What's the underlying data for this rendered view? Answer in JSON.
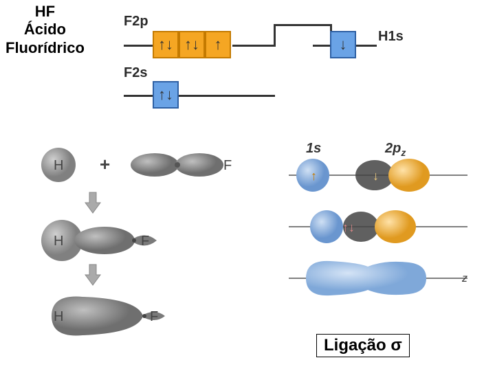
{
  "title": {
    "line1": "HF",
    "line2": "Ácido",
    "line3": "Fluorídrico"
  },
  "energyDiagram": {
    "f2p": {
      "label": "F2p",
      "fill": "#f5a623",
      "border": "#c47a00",
      "arrows": [
        "↑↓",
        "↑↓",
        "↑"
      ]
    },
    "h1s": {
      "label": "H1s",
      "fill": "#6aa3e6",
      "border": "#2d5fa3",
      "arrows": [
        "↓"
      ]
    },
    "f2s": {
      "label": "F2s",
      "fill": "#6aa3e6",
      "border": "#2d5fa3",
      "arrows": [
        "↑↓"
      ]
    }
  },
  "hfSeq": {
    "H": "H",
    "F": "F",
    "plus": "+",
    "colors": {
      "grayDark": "#7a7a7a",
      "grayMid": "#8f8f8f",
      "grayLight": "#b8b8b8"
    }
  },
  "bondSeq": {
    "s_label": "1s",
    "p_label": "2pz",
    "z_label": "z",
    "arrows": {
      "up": "↑",
      "down": "↓",
      "both": "↑↓"
    },
    "colors": {
      "blue": "#7fa8d9",
      "blueLight": "#a9c4e8",
      "orange": "#f0b546",
      "orangeDeep": "#e09a20",
      "sigma": "#8fb4df"
    }
  },
  "sigmaLabel": "Ligação σ"
}
